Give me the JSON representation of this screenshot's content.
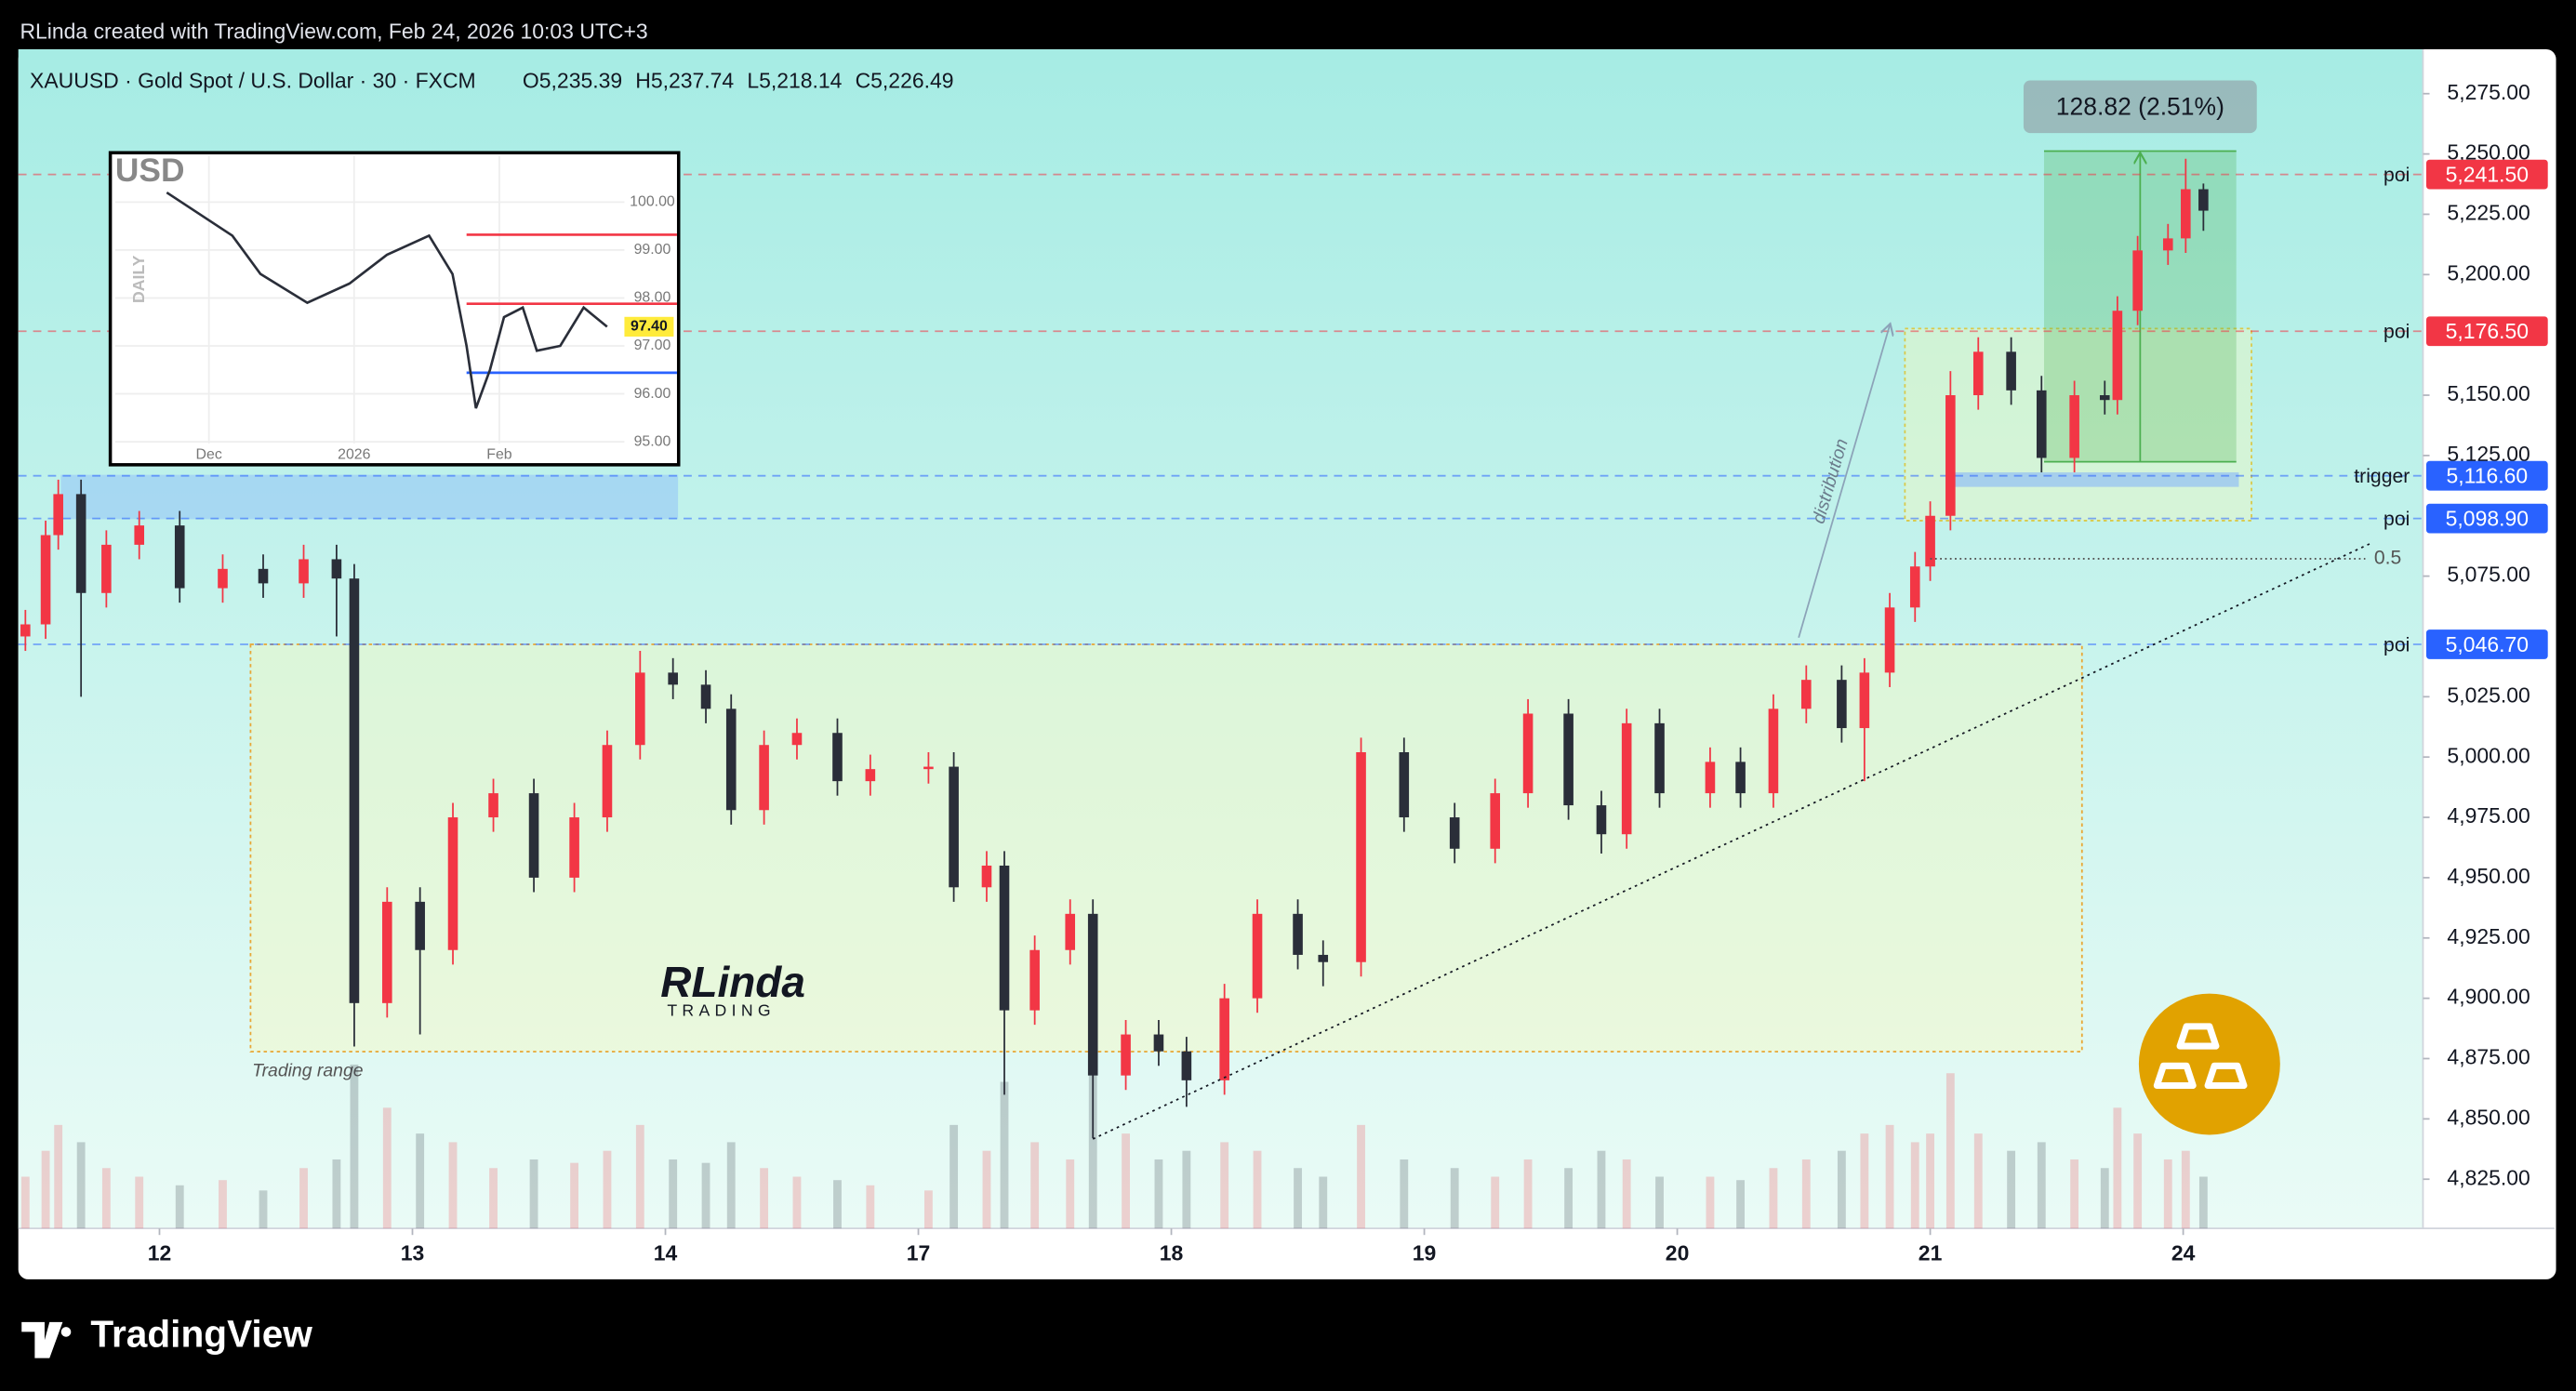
{
  "caption": "RLinda created with TradingView.com, Feb 24, 2026 10:03 UTC+3",
  "symbol": "XAUUSD · Gold Spot / U.S. Dollar · 30 · FXCM",
  "legend_values": [
    "O5,235.39",
    "H5,237.74",
    "L5,218.14",
    "C5,226.49"
  ],
  "watermark": {
    "name": "RLinda",
    "sub": "TRADING"
  },
  "brand": "TradingView",
  "chart_data": [
    {
      "type": "candlestick",
      "xlim": [
        -0.558,
        8.948
      ],
      "ylim": [
        4804.6,
        5293.4
      ],
      "xticks": [
        {
          "value": 0,
          "label": "12"
        },
        {
          "value": 1,
          "label": "13"
        },
        {
          "value": 2,
          "label": "14"
        },
        {
          "value": 3,
          "label": "17"
        },
        {
          "value": 4,
          "label": "18"
        },
        {
          "value": 5,
          "label": "19"
        },
        {
          "value": 6,
          "label": "20"
        },
        {
          "value": 7,
          "label": "21"
        },
        {
          "value": 8,
          "label": "24"
        }
      ],
      "yticks": [
        {
          "value": 4825,
          "label": "4,825.00"
        },
        {
          "value": 4850,
          "label": "4,850.00"
        },
        {
          "value": 4875,
          "label": "4,875.00"
        },
        {
          "value": 4900,
          "label": "4,900.00"
        },
        {
          "value": 4925,
          "label": "4,925.00"
        },
        {
          "value": 4950,
          "label": "4,950.00"
        },
        {
          "value": 4975,
          "label": "4,975.00"
        },
        {
          "value": 5000,
          "label": "5,000.00"
        },
        {
          "value": 5025,
          "label": "5,025.00"
        },
        {
          "value": 5075,
          "label": "5,075.00"
        },
        {
          "value": 5125,
          "label": "5,125.00"
        },
        {
          "value": 5150,
          "label": "5,150.00"
        },
        {
          "value": 5200,
          "label": "5,200.00"
        },
        {
          "value": 5225,
          "label": "5,225.00"
        },
        {
          "value": 5250,
          "label": "5,250.00"
        },
        {
          "value": 5275,
          "label": "5,275.00"
        }
      ],
      "up_color": "#f23645",
      "down_color": "#2a2e39",
      "x": [
        -0.53,
        -0.45,
        -0.4,
        -0.31,
        -0.21,
        -0.08,
        0.08,
        0.25,
        0.41,
        0.57,
        0.7,
        0.77,
        0.9,
        1.03,
        1.16,
        1.32,
        1.48,
        1.64,
        1.77,
        1.9,
        2.03,
        2.16,
        2.26,
        2.39,
        2.52,
        2.68,
        2.81,
        3.04,
        3.14,
        3.27,
        3.34,
        3.46,
        3.6,
        3.69,
        3.82,
        3.95,
        4.06,
        4.21,
        4.34,
        4.5,
        4.6,
        4.75,
        4.92,
        5.12,
        5.28,
        5.41,
        5.57,
        5.7,
        5.8,
        5.93,
        6.13,
        6.25,
        6.38,
        6.51,
        6.65,
        6.74,
        6.84,
        6.94,
        7.0,
        7.08,
        7.19,
        7.32,
        7.44,
        7.57,
        7.69,
        7.74,
        7.82,
        7.94,
        8.01,
        8.08
      ],
      "open": [
        5050,
        5055,
        5092,
        5109,
        5068,
        5088,
        5096,
        5070,
        5078,
        5072,
        5082,
        5074,
        4898,
        4940,
        4920,
        4975,
        4985,
        4950,
        4975,
        5005,
        5035,
        5030,
        5020,
        4978,
        5005,
        5010,
        4990,
        4995,
        4996,
        4946,
        4955,
        4895,
        4920,
        4935,
        4868,
        4885,
        4878,
        4866,
        4900,
        4935,
        4918,
        4915,
        5002,
        4975,
        4962,
        4985,
        5018,
        4980,
        4968,
        5014,
        4985,
        4998,
        4985,
        5020,
        5032,
        5012,
        5035,
        5062,
        5079,
        5100,
        5150,
        5168,
        5152,
        5124,
        5150,
        5148,
        5185,
        5210,
        5215,
        5235.39
      ],
      "high": [
        5061,
        5098,
        5115,
        5115,
        5094,
        5102,
        5102,
        5084,
        5084,
        5088,
        5088,
        5080,
        4946,
        4946,
        4981,
        4991,
        4991,
        4981,
        5011,
        5044,
        5041,
        5036,
        5026,
        5011,
        5016,
        5016,
        5001,
        5002,
        5002,
        4961,
        4961,
        4926,
        4941,
        4941,
        4891,
        4891,
        4884,
        4906,
        4941,
        4941,
        4924,
        5008,
        5008,
        4981,
        4991,
        5024,
        5024,
        4986,
        5020,
        5020,
        5004,
        5004,
        5026,
        5038,
        5038,
        5041,
        5068,
        5085,
        5106,
        5160,
        5174,
        5174,
        5158,
        5156,
        5156,
        5191,
        5216,
        5221,
        5248,
        5237.74
      ],
      "low": [
        5044,
        5049,
        5086,
        5025,
        5062,
        5082,
        5064,
        5064,
        5066,
        5066,
        5050,
        4880,
        4892,
        4885,
        4914,
        4969,
        4944,
        4944,
        4969,
        4999,
        5024,
        5014,
        4972,
        4972,
        4999,
        4984,
        4984,
        4989,
        4940,
        4940,
        4860,
        4889,
        4914,
        4842,
        4862,
        4872,
        4855,
        4860,
        4894,
        4912,
        4905,
        4909,
        4969,
        4956,
        4956,
        4979,
        4974,
        4960,
        4962,
        4979,
        4979,
        4979,
        4979,
        5014,
        5006,
        4990,
        5029,
        5056,
        5073,
        5094,
        5144,
        5146,
        5118,
        5118,
        5142,
        5142,
        5179,
        5204,
        5209,
        5218.14
      ],
      "close": [
        5055,
        5092,
        5109,
        5068,
        5088,
        5096,
        5070,
        5078,
        5072,
        5082,
        5074,
        4898,
        4940,
        4920,
        4975,
        4985,
        4950,
        4975,
        5005,
        5035,
        5030,
        5020,
        4978,
        5005,
        5010,
        4990,
        4995,
        4996,
        4946,
        4955,
        4895,
        4920,
        4935,
        4868,
        4885,
        4878,
        4866,
        4900,
        4935,
        4918,
        4915,
        5002,
        4975,
        4962,
        4985,
        5018,
        4980,
        4968,
        5014,
        4985,
        4998,
        4985,
        5020,
        5032,
        5012,
        5035,
        5062,
        5079,
        5100,
        5150,
        5168,
        5152,
        5124,
        5150,
        5148,
        5185,
        5210,
        5215,
        5235.39,
        5226.49
      ],
      "volume": [
        30,
        45,
        60,
        50,
        35,
        30,
        25,
        28,
        22,
        35,
        40,
        95,
        70,
        55,
        50,
        35,
        40,
        38,
        45,
        60,
        40,
        38,
        50,
        35,
        30,
        28,
        25,
        22,
        60,
        45,
        85,
        50,
        40,
        90,
        55,
        40,
        45,
        50,
        45,
        35,
        30,
        60,
        40,
        35,
        30,
        40,
        35,
        45,
        40,
        30,
        30,
        28,
        35,
        40,
        45,
        55,
        60,
        50,
        55,
        90,
        55,
        45,
        50,
        40,
        35,
        70,
        55,
        40,
        45,
        30
      ],
      "zones": [
        {
          "label": "Trading range",
          "x": [
            0.36,
            7.6
          ],
          "y": [
            4877.9,
            5046.7
          ],
          "fill": "rgba(255,248,180,0.35)",
          "stroke": "#e8a735"
        },
        {
          "x": [
            6.9,
            8.27
          ],
          "y": [
            5098,
            5177.6
          ],
          "fill": "rgba(255,248,180,0.35)",
          "stroke": "#d9c94a"
        },
        {
          "x": [
            -0.39,
            2.05
          ],
          "y": [
            5098.6,
            5117
          ],
          "fill": "rgba(120,170,255,0.35)"
        },
        {
          "x": [
            7.07,
            8.22
          ],
          "y": [
            5112,
            5118
          ],
          "fill": "rgba(120,170,255,0.5)"
        }
      ],
      "levels": [
        {
          "tag": "poi",
          "value": 5241.5,
          "label": "5,241.50",
          "color": "#f23645"
        },
        {
          "tag": "poi",
          "value": 5176.5,
          "label": "5,176.50",
          "color": "#f23645"
        },
        {
          "tag": "trigger",
          "value": 5116.6,
          "label": "5,116.60",
          "color": "#2962ff"
        },
        {
          "tag": "poi",
          "value": 5098.9,
          "label": "5,098.90",
          "color": "#2962ff"
        },
        {
          "tag": "poi",
          "value": 5046.7,
          "label": "5,046.70",
          "color": "#2962ff"
        }
      ],
      "fib": {
        "label": "0.5",
        "value": 5082.2,
        "x": [
          7.0,
          8.72
        ]
      },
      "trendline": {
        "x": [
          3.69,
          8.75
        ],
        "y": [
          4841.7,
          5089
        ]
      },
      "distribution": {
        "label": "distribution",
        "x": [
          6.48,
          6.84
        ],
        "y": [
          5049.5,
          5179
        ]
      },
      "measure": {
        "label": "128.82 (2.51%)",
        "low": 5122.4,
        "high": 5251.2,
        "x": [
          7.45,
          8.21
        ]
      }
    },
    {
      "type": "line",
      "title": "USD",
      "ylabel": "DAILY",
      "x": [
        -9,
        5,
        11,
        21,
        30,
        38,
        47,
        52,
        55,
        57,
        60,
        63,
        67,
        70,
        75,
        80,
        85
      ],
      "values": [
        100.2,
        99.3,
        98.5,
        97.9,
        98.3,
        98.9,
        99.3,
        98.5,
        97.0,
        95.7,
        96.5,
        97.6,
        97.8,
        96.9,
        97.0,
        97.8,
        97.4
      ],
      "color": "#2a2e39",
      "xlim": [
        -20,
        88
      ],
      "ylim": [
        94.52,
        101.03
      ],
      "xticks": [
        {
          "value": 0,
          "label": "Dec"
        },
        {
          "value": 31,
          "label": "2026"
        },
        {
          "value": 62,
          "label": "Feb"
        }
      ],
      "yticks": [
        {
          "value": 95,
          "label": "95.00"
        },
        {
          "value": 96,
          "label": "96.00"
        },
        {
          "value": 97,
          "label": "97.00"
        },
        {
          "value": 98,
          "label": "98.00"
        },
        {
          "value": 99,
          "label": "99.00"
        },
        {
          "value": 100,
          "label": "100.00"
        }
      ],
      "levels": [
        {
          "value": 99.32,
          "color": "#f23645"
        },
        {
          "value": 97.88,
          "color": "#f23645"
        },
        {
          "value": 96.44,
          "color": "#2962ff"
        }
      ],
      "last": {
        "value": 97.4,
        "label": "97.40"
      }
    }
  ]
}
